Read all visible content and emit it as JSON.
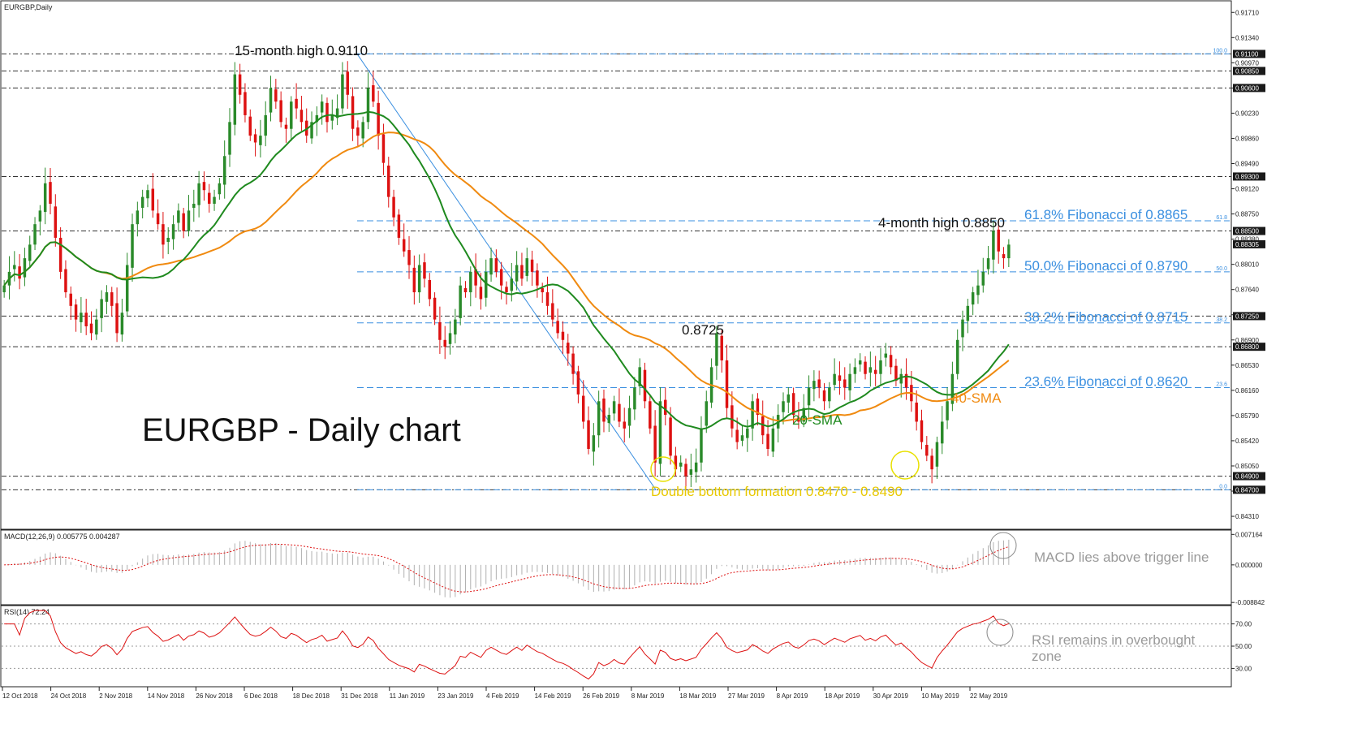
{
  "window": {
    "symbol_label": "EURGBP,Daily",
    "chart_title": "EURGBP - Daily chart"
  },
  "colors": {
    "bull": "#2a8a2a",
    "bear": "#dd1111",
    "sma20": "#1f8a1f",
    "sma40": "#f08a10",
    "fib": "#3a8fe0",
    "annotation_yellow": "#e8d000",
    "macd_hist": "#b0b0b0",
    "signal": "#dd1111",
    "rsi": "#dd1111",
    "axis_text": "#222222",
    "annotation_gray": "#9a9a9a"
  },
  "chart_data": [
    {
      "type": "candlestick",
      "title": "EURGBP - Daily chart",
      "ylim": [
        0.8412,
        0.9188
      ],
      "price_ticks": [
        "0.91710",
        "0.91340",
        "0.90970",
        "0.90600",
        "0.90230",
        "0.89860",
        "0.89490",
        "0.89120",
        "0.88750",
        "0.88380",
        "0.88010",
        "0.87640",
        "0.87270",
        "0.86900",
        "0.86530",
        "0.86160",
        "0.85790",
        "0.85420",
        "0.85050",
        "0.84680",
        "0.84310"
      ],
      "x_labels": [
        "12 Oct 2018",
        "24 Oct 2018",
        "2 Nov 2018",
        "14 Nov 2018",
        "26 Nov 2018",
        "6 Dec 2018",
        "18 Dec 2018",
        "31 Dec 2018",
        "11 Jan 2019",
        "23 Jan 2019",
        "4 Feb 2019",
        "14 Feb 2019",
        "26 Feb 2019",
        "8 Mar 2019",
        "18 Mar 2019",
        "27 Mar 2019",
        "8 Apr 2019",
        "18 Apr 2019",
        "30 Apr 2019",
        "10 May 2019",
        "22 May 2019"
      ],
      "close_series": [
        0.877,
        0.879,
        0.88,
        0.878,
        0.881,
        0.883,
        0.886,
        0.888,
        0.892,
        0.889,
        0.884,
        0.879,
        0.876,
        0.874,
        0.872,
        0.873,
        0.871,
        0.87,
        0.872,
        0.875,
        0.876,
        0.874,
        0.87,
        0.873,
        0.88,
        0.886,
        0.888,
        0.89,
        0.891,
        0.888,
        0.886,
        0.883,
        0.884,
        0.886,
        0.888,
        0.885,
        0.888,
        0.889,
        0.892,
        0.891,
        0.889,
        0.89,
        0.892,
        0.896,
        0.901,
        0.908,
        0.905,
        0.902,
        0.899,
        0.898,
        0.899,
        0.902,
        0.906,
        0.904,
        0.901,
        0.9,
        0.904,
        0.903,
        0.901,
        0.899,
        0.901,
        0.902,
        0.904,
        0.901,
        0.902,
        0.903,
        0.908,
        0.905,
        0.9,
        0.899,
        0.901,
        0.906,
        0.904,
        0.899,
        0.895,
        0.89,
        0.887,
        0.884,
        0.882,
        0.88,
        0.876,
        0.88,
        0.878,
        0.875,
        0.872,
        0.869,
        0.868,
        0.87,
        0.872,
        0.877,
        0.876,
        0.879,
        0.877,
        0.875,
        0.879,
        0.881,
        0.879,
        0.877,
        0.876,
        0.878,
        0.88,
        0.878,
        0.881,
        0.879,
        0.877,
        0.876,
        0.874,
        0.872,
        0.87,
        0.869,
        0.867,
        0.864,
        0.861,
        0.857,
        0.853,
        0.855,
        0.86,
        0.857,
        0.858,
        0.86,
        0.857,
        0.856,
        0.859,
        0.862,
        0.865,
        0.86,
        0.856,
        0.851,
        0.86,
        0.858,
        0.852,
        0.85,
        0.851,
        0.849,
        0.85,
        0.851,
        0.856,
        0.86,
        0.865,
        0.87,
        0.866,
        0.859,
        0.856,
        0.854,
        0.855,
        0.856,
        0.86,
        0.858,
        0.855,
        0.853,
        0.856,
        0.858,
        0.86,
        0.861,
        0.858,
        0.857,
        0.859,
        0.862,
        0.863,
        0.862,
        0.86,
        0.862,
        0.864,
        0.863,
        0.862,
        0.864,
        0.865,
        0.866,
        0.864,
        0.865,
        0.864,
        0.866,
        0.867,
        0.865,
        0.863,
        0.864,
        0.862,
        0.86,
        0.857,
        0.854,
        0.852,
        0.85,
        0.854,
        0.857,
        0.86,
        0.864,
        0.869,
        0.872,
        0.874,
        0.876,
        0.877,
        0.879,
        0.881,
        0.885,
        0.882,
        0.881,
        0.883
      ],
      "sma20": {
        "label": "20-SMA",
        "start": 0.885,
        "end": 0.869,
        "min": 0.859
      },
      "sma40": {
        "label": "40-SMA",
        "start": 0.891,
        "end": 0.866,
        "min": 0.8605
      },
      "levels": [
        "0.91100",
        "0.90850",
        "0.90600",
        "0.89300",
        "0.88500",
        "0.87250",
        "0.86800",
        "0.84900",
        "0.84700"
      ],
      "level_values": [
        0.911,
        0.9085,
        0.906,
        0.893,
        0.885,
        0.8725,
        0.868,
        0.849,
        0.847
      ],
      "current_price": "0.88305",
      "fibonacci": [
        {
          "level": "100.0",
          "value": 0.911
        },
        {
          "level": "61.8",
          "value": 0.8865,
          "label": "61.8% Fibonacci of 0.8865"
        },
        {
          "level": "50.0",
          "value": 0.879,
          "label": "50.0% Fibonacci of 0.8790"
        },
        {
          "level": "38.2",
          "value": 0.8715,
          "label": "38.2% Fibonacci of 0.8715"
        },
        {
          "level": "23.6",
          "value": 0.862,
          "label": "23.6% Fibonacci of 0.8620"
        },
        {
          "level": "0.0",
          "value": 0.847
        }
      ],
      "annotations": {
        "high_15m": "15-month high 0.9110",
        "high_4m": "4-month high 0.8850",
        "peak_8725": "0.8725",
        "double_bottom": "Double bottom formation 0.8470 - 0.8490",
        "sma20_label": "20-SMA",
        "sma40_label": "40-SMA"
      }
    },
    {
      "type": "macd",
      "label": "MACD(12,26,9) 0.005775 0.004287",
      "ylim": [
        -0.009,
        0.0078
      ],
      "ticks": [
        "0.007164",
        "0.000000",
        "-0.008842"
      ],
      "annotation": "MACD lies above trigger line"
    },
    {
      "type": "line",
      "label": "RSI(14) 72.24",
      "ylim": [
        15,
        85
      ],
      "ticks": [
        "70.00",
        "50.00",
        "30.00"
      ],
      "annotation_line1": "RSI remains in overbought",
      "annotation_line2": "zone"
    }
  ]
}
